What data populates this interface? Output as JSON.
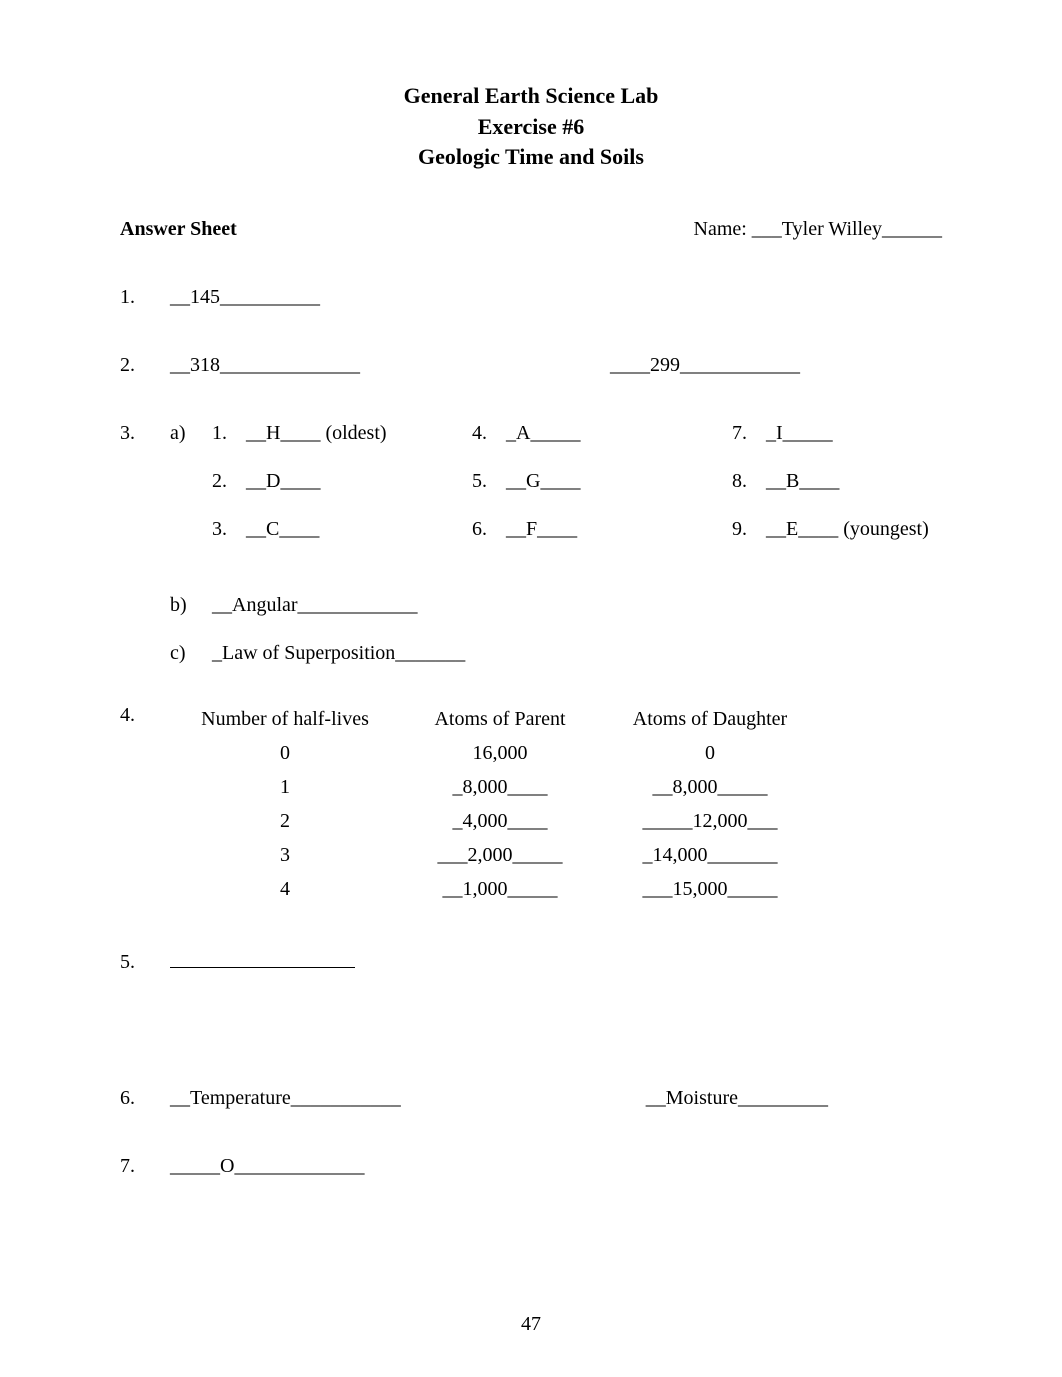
{
  "title": {
    "line1": "General Earth Science Lab",
    "line2": "Exercise #6",
    "line3": "Geologic Time and Soils"
  },
  "header": {
    "answer_sheet": "Answer Sheet",
    "name_label": "Name: ___Tyler Willey______"
  },
  "q1": {
    "num": "1.",
    "value": "__145__________"
  },
  "q2": {
    "num": "2.",
    "left": "__318______________",
    "right": "____299____________"
  },
  "q3": {
    "num": "3.",
    "sub_a": "a)",
    "layers": [
      {
        "n": "1.",
        "v": "__H____ (oldest)"
      },
      {
        "n": "2.",
        "v": "__D____"
      },
      {
        "n": "3.",
        "v": "__C____"
      },
      {
        "n": "4.",
        "v": "_A_____"
      },
      {
        "n": "5.",
        "v": "__G____"
      },
      {
        "n": "6.",
        "v": "__F____"
      },
      {
        "n": "7.",
        "v": "_I_____"
      },
      {
        "n": "8.",
        "v": "__B____"
      },
      {
        "n": "9.",
        "v": "__E____ (youngest)"
      }
    ],
    "sub_b": "b)",
    "b_value": "__Angular____________",
    "sub_c": "c)",
    "c_value": "_Law of Superposition_______"
  },
  "q4": {
    "num": "4.",
    "headers": [
      "Number of half-lives",
      "Atoms of Parent",
      "Atoms of Daughter"
    ],
    "rows": [
      [
        "0",
        "16,000",
        "0"
      ],
      [
        "1",
        "_8,000____",
        "__8,000_____"
      ],
      [
        "2",
        "_4,000____",
        "_____12,000___"
      ],
      [
        "3",
        "___2,000_____",
        "_14,000_______"
      ],
      [
        "4",
        "__1,000_____",
        "___15,000_____"
      ]
    ]
  },
  "q5": {
    "num": "5."
  },
  "q6": {
    "num": "6.",
    "left": "__Temperature___________",
    "right": "__Moisture_________"
  },
  "q7": {
    "num": "7.",
    "value": "_____O_____________"
  },
  "page_number": "47"
}
